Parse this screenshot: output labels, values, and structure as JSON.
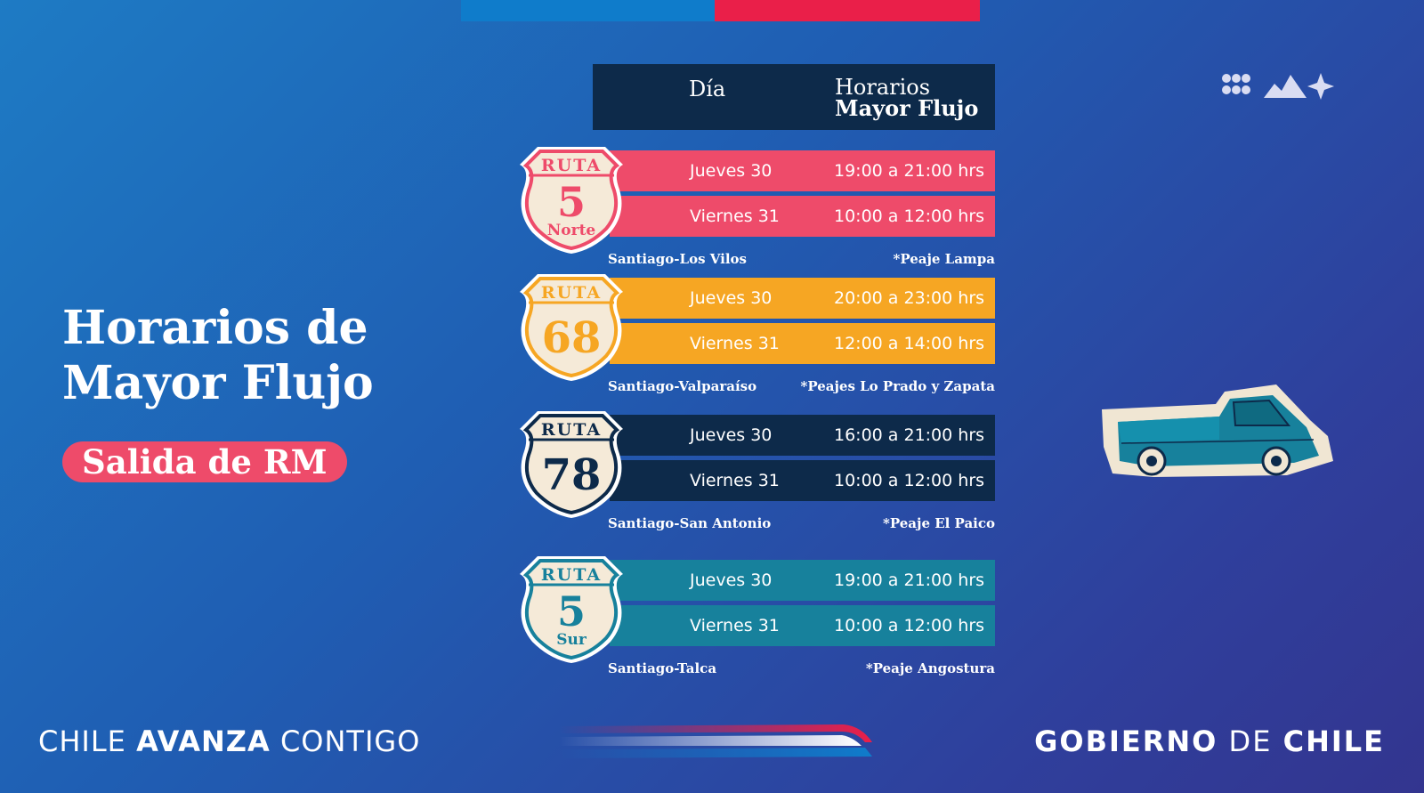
{
  "colors": {
    "flag_blue": "#0f7ccb",
    "flag_red": "#ea1f49",
    "pink": "#ee4b6a",
    "orange": "#f6a623",
    "navy": "#0d2a4a",
    "teal": "#17819c"
  },
  "title": {
    "line1": "Horarios de",
    "line2": "Mayor Flujo"
  },
  "subtitle": "Salida de RM",
  "table_header": {
    "day": "Día",
    "hours_line1": "Horarios",
    "hours_line2": "Mayor Flujo"
  },
  "routes": [
    {
      "shield_top": "RUTA",
      "shield_number": "5",
      "shield_suffix": "Norte",
      "color": "#ee4b6a",
      "rows": [
        {
          "day": "Jueves 30",
          "hours": "19:00 a 21:00 hrs"
        },
        {
          "day": "Viernes 31",
          "hours": "10:00 a 12:00 hrs"
        }
      ],
      "segment": "Santiago-Los Vilos",
      "toll": "*Peaje Lampa"
    },
    {
      "shield_top": "RUTA",
      "shield_number": "68",
      "shield_suffix": "",
      "color": "#f6a623",
      "rows": [
        {
          "day": "Jueves 30",
          "hours": "20:00 a 23:00 hrs"
        },
        {
          "day": "Viernes 31",
          "hours": "12:00 a 14:00 hrs"
        }
      ],
      "segment": "Santiago-Valparaíso",
      "toll": "*Peajes Lo Prado y Zapata"
    },
    {
      "shield_top": "RUTA",
      "shield_number": "78",
      "shield_suffix": "",
      "color": "#0d2a4a",
      "rows": [
        {
          "day": "Jueves 30",
          "hours": "16:00 a 21:00 hrs"
        },
        {
          "day": "Viernes 31",
          "hours": "10:00 a 12:00 hrs"
        }
      ],
      "segment": "Santiago-San Antonio",
      "toll": "*Peaje El Paico"
    },
    {
      "shield_top": "RUTA",
      "shield_number": "5",
      "shield_suffix": "Sur",
      "color": "#17819c",
      "rows": [
        {
          "day": "Jueves 30",
          "hours": "19:00 a 21:00 hrs"
        },
        {
          "day": "Viernes 31",
          "hours": "10:00 a 12:00 hrs"
        }
      ],
      "segment": "Santiago-Talca",
      "toll": "*Peaje Angostura"
    }
  ],
  "icons": {
    "brand_mark": "dots-mountains-star-icon",
    "truck": "pickup-truck-icon",
    "swoosh": "tricolor-swoosh-icon"
  },
  "footer": {
    "left_prefix": "CHILE",
    "left_bold": "AVANZA",
    "left_suffix": "CONTIGO",
    "right_bold1": "GOBIERNO",
    "right_mid": "DE",
    "right_bold2": "CHILE"
  }
}
